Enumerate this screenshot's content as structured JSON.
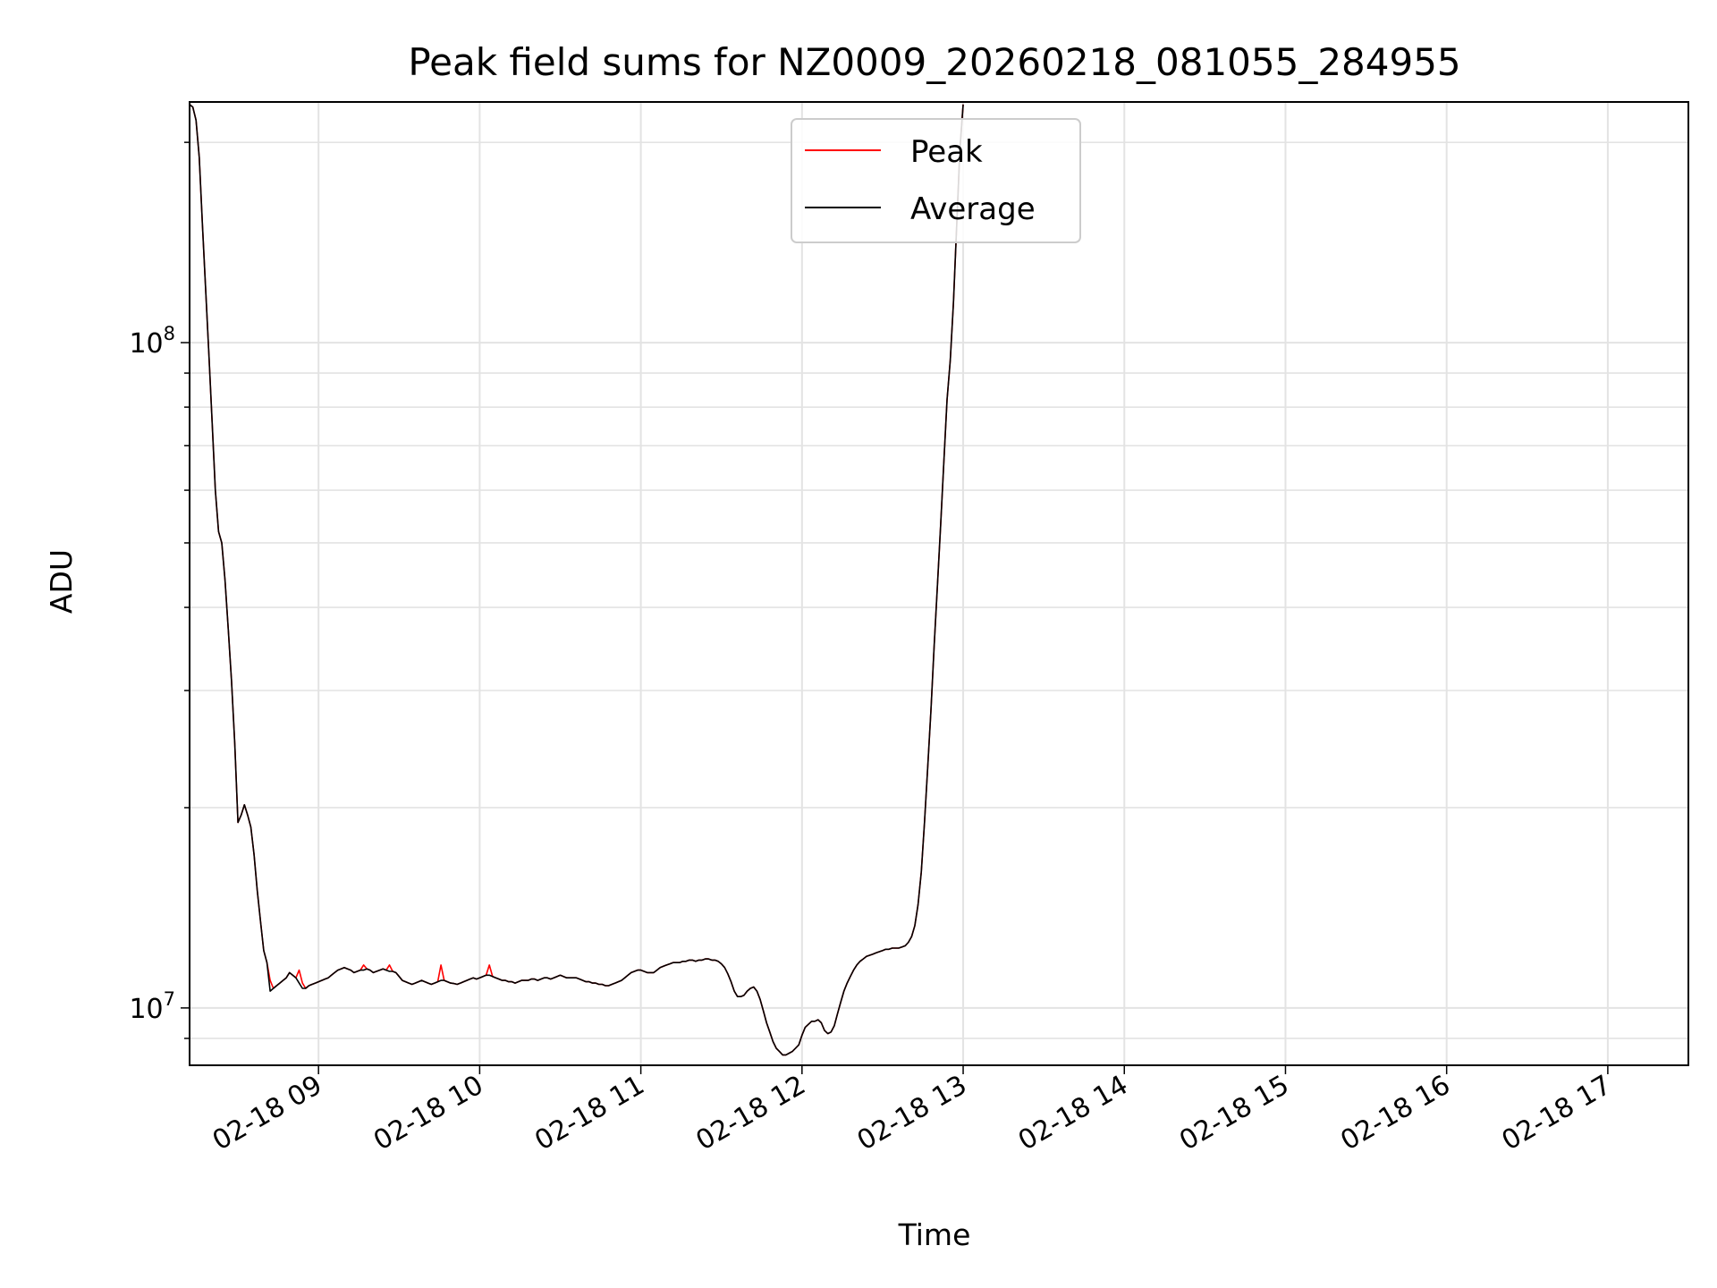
{
  "chart_data": {
    "type": "line",
    "title": "Peak field sums for NZ0009_20260218_081055_284955",
    "xlabel": "Time",
    "ylabel": "ADU",
    "yscale": "log",
    "xlim": [
      8.2,
      17.5
    ],
    "ylim": [
      8200000,
      230000000
    ],
    "grid": true,
    "legend_position": "top-center",
    "x_ticks": [
      {
        "value": 9,
        "label": "02-18 09"
      },
      {
        "value": 10,
        "label": "02-18 10"
      },
      {
        "value": 11,
        "label": "02-18 11"
      },
      {
        "value": 12,
        "label": "02-18 12"
      },
      {
        "value": 13,
        "label": "02-18 13"
      },
      {
        "value": 14,
        "label": "02-18 14"
      },
      {
        "value": 15,
        "label": "02-18 15"
      },
      {
        "value": 16,
        "label": "02-18 16"
      },
      {
        "value": 17,
        "label": "02-18 17"
      }
    ],
    "y_ticks": [
      {
        "value": 10000000,
        "base": "10",
        "exp": "7"
      },
      {
        "value": 100000000,
        "base": "10",
        "exp": "8"
      }
    ],
    "series": [
      {
        "name": "Peak",
        "color": "#ff0000",
        "x_start": 8.2,
        "x_step": 0.02,
        "values": [
          228000000,
          226000000,
          216000000,
          190000000,
          150000000,
          120000000,
          96000000,
          76000000,
          60000000,
          52000000,
          50000000,
          44000000,
          37000000,
          31000000,
          25000000,
          19000000,
          19500000,
          20200000,
          19500000,
          18700000,
          17000000,
          15000000,
          13500000,
          12200000,
          11700000,
          11000000,
          10700000,
          10800000,
          10900000,
          11000000,
          11100000,
          11300000,
          11200000,
          11100000,
          11400000,
          10900000,
          10700000,
          10800000,
          10850000,
          10900000,
          10950000,
          11000000,
          11050000,
          11100000,
          11200000,
          11300000,
          11400000,
          11450000,
          11500000,
          11450000,
          11400000,
          11300000,
          11350000,
          11400000,
          11600000,
          11450000,
          11400000,
          11300000,
          11350000,
          11400000,
          11450000,
          11400000,
          11600000,
          11350000,
          11300000,
          11150000,
          11000000,
          10950000,
          10900000,
          10850000,
          10900000,
          10950000,
          11000000,
          10950000,
          10900000,
          10850000,
          10900000,
          10950000,
          11600000,
          11000000,
          10950000,
          10900000,
          10880000,
          10850000,
          10900000,
          10950000,
          11000000,
          11050000,
          11100000,
          11050000,
          11100000,
          11150000,
          11200000,
          11600000,
          11150000,
          11100000,
          11050000,
          11000000,
          11000000,
          10950000,
          10950000,
          10900000,
          10950000,
          11000000,
          11000000,
          11000000,
          11050000,
          11050000,
          11000000,
          11050000,
          11100000,
          11100000,
          11050000,
          11100000,
          11150000,
          11200000,
          11150000,
          11100000,
          11100000,
          11100000,
          11100000,
          11050000,
          11000000,
          10950000,
          10950000,
          10900000,
          10900000,
          10850000,
          10850000,
          10800000,
          10800000,
          10850000,
          10900000,
          10950000,
          11000000,
          11100000,
          11200000,
          11300000,
          11350000,
          11400000,
          11400000,
          11350000,
          11300000,
          11300000,
          11300000,
          11400000,
          11500000,
          11550000,
          11600000,
          11650000,
          11700000,
          11700000,
          11700000,
          11750000,
          11750000,
          11800000,
          11800000,
          11750000,
          11800000,
          11800000,
          11850000,
          11850000,
          11800000,
          11800000,
          11750000,
          11650000,
          11500000,
          11250000,
          10950000,
          10600000,
          10400000,
          10400000,
          10450000,
          10600000,
          10700000,
          10750000,
          10600000,
          10300000,
          9900000,
          9500000,
          9200000,
          8900000,
          8700000,
          8600000,
          8500000,
          8500000,
          8550000,
          8600000,
          8700000,
          8800000,
          9100000,
          9350000,
          9450000,
          9550000,
          9550000,
          9600000,
          9500000,
          9250000,
          9150000,
          9200000,
          9400000,
          9800000,
          10200000,
          10600000,
          10900000,
          11150000,
          11400000,
          11600000,
          11750000,
          11850000,
          11950000,
          12000000,
          12050000,
          12100000,
          12150000,
          12200000,
          12250000,
          12250000,
          12300000,
          12300000,
          12300000,
          12350000,
          12400000,
          12550000,
          12800000,
          13300000,
          14300000,
          16000000,
          19000000,
          23000000,
          28000000,
          35000000,
          43000000,
          53000000,
          66000000,
          82000000,
          94000000,
          115000000,
          150000000,
          195000000,
          228000000
        ]
      },
      {
        "name": "Average",
        "color": "#000000",
        "x_start": 8.2,
        "x_step": 0.02,
        "values": [
          228000000,
          226000000,
          216000000,
          190000000,
          150000000,
          120000000,
          96000000,
          76000000,
          60000000,
          52000000,
          50000000,
          44000000,
          37000000,
          31000000,
          25000000,
          19000000,
          19500000,
          20200000,
          19500000,
          18700000,
          17000000,
          15000000,
          13500000,
          12200000,
          11700000,
          10600000,
          10700000,
          10800000,
          10900000,
          11000000,
          11100000,
          11300000,
          11200000,
          11100000,
          10900000,
          10700000,
          10700000,
          10800000,
          10850000,
          10900000,
          10950000,
          11000000,
          11050000,
          11100000,
          11200000,
          11300000,
          11400000,
          11450000,
          11500000,
          11450000,
          11400000,
          11300000,
          11350000,
          11400000,
          11400000,
          11450000,
          11400000,
          11300000,
          11350000,
          11400000,
          11450000,
          11400000,
          11350000,
          11350000,
          11300000,
          11150000,
          11000000,
          10950000,
          10900000,
          10850000,
          10900000,
          10950000,
          11000000,
          10950000,
          10900000,
          10850000,
          10900000,
          10950000,
          11000000,
          11000000,
          10950000,
          10900000,
          10880000,
          10850000,
          10900000,
          10950000,
          11000000,
          11050000,
          11100000,
          11050000,
          11100000,
          11150000,
          11200000,
          11200000,
          11150000,
          11100000,
          11050000,
          11000000,
          11000000,
          10950000,
          10950000,
          10900000,
          10950000,
          11000000,
          11000000,
          11000000,
          11050000,
          11050000,
          11000000,
          11050000,
          11100000,
          11100000,
          11050000,
          11100000,
          11150000,
          11200000,
          11150000,
          11100000,
          11100000,
          11100000,
          11100000,
          11050000,
          11000000,
          10950000,
          10950000,
          10900000,
          10900000,
          10850000,
          10850000,
          10800000,
          10800000,
          10850000,
          10900000,
          10950000,
          11000000,
          11100000,
          11200000,
          11300000,
          11350000,
          11400000,
          11400000,
          11350000,
          11300000,
          11300000,
          11300000,
          11400000,
          11500000,
          11550000,
          11600000,
          11650000,
          11700000,
          11700000,
          11700000,
          11750000,
          11750000,
          11800000,
          11800000,
          11750000,
          11800000,
          11800000,
          11850000,
          11850000,
          11800000,
          11800000,
          11750000,
          11650000,
          11500000,
          11250000,
          10950000,
          10600000,
          10400000,
          10400000,
          10450000,
          10600000,
          10700000,
          10750000,
          10600000,
          10300000,
          9900000,
          9500000,
          9200000,
          8900000,
          8700000,
          8600000,
          8500000,
          8500000,
          8550000,
          8600000,
          8700000,
          8800000,
          9100000,
          9350000,
          9450000,
          9550000,
          9550000,
          9600000,
          9500000,
          9250000,
          9150000,
          9200000,
          9400000,
          9800000,
          10200000,
          10600000,
          10900000,
          11150000,
          11400000,
          11600000,
          11750000,
          11850000,
          11950000,
          12000000,
          12050000,
          12100000,
          12150000,
          12200000,
          12250000,
          12250000,
          12300000,
          12300000,
          12300000,
          12350000,
          12400000,
          12550000,
          12800000,
          13300000,
          14300000,
          16000000,
          19000000,
          23000000,
          28000000,
          35000000,
          43000000,
          53000000,
          66000000,
          82000000,
          94000000,
          115000000,
          150000000,
          195000000,
          228000000
        ]
      }
    ]
  }
}
